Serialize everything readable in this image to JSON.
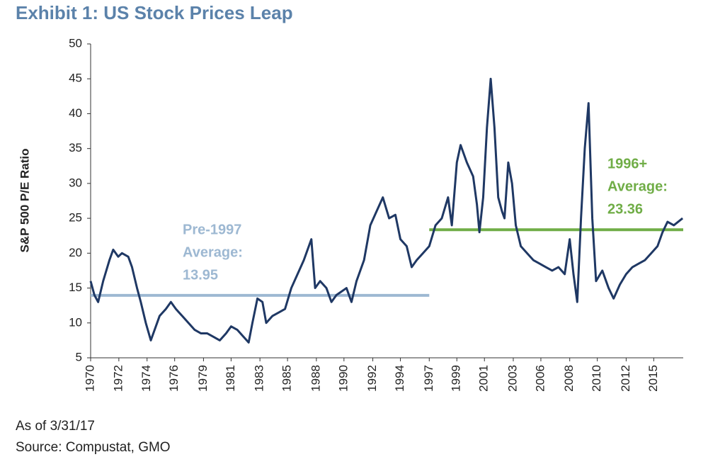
{
  "chart_data": {
    "type": "line",
    "title": "Exhibit 1: US Stock Prices Leap",
    "y_label": "S&P 500 P/E Ratio",
    "notes": [
      "As of 3/31/17",
      "Source: Compustat, GMO"
    ],
    "xlim": [
      1970,
      2017.25
    ],
    "ylim": [
      5,
      50
    ],
    "yticks": [
      5,
      10,
      15,
      20,
      25,
      30,
      35,
      40,
      45,
      50
    ],
    "xticks": [
      {
        "value": 1970,
        "label": "1970"
      },
      {
        "value": 1972.25,
        "label": "1972"
      },
      {
        "value": 1974.5,
        "label": "1974"
      },
      {
        "value": 1976.7,
        "label": "1976"
      },
      {
        "value": 1979,
        "label": "1979"
      },
      {
        "value": 1981.2,
        "label": "1981"
      },
      {
        "value": 1983.5,
        "label": "1983"
      },
      {
        "value": 1985.7,
        "label": "1985"
      },
      {
        "value": 1988,
        "label": "1988"
      },
      {
        "value": 1990.2,
        "label": "1990"
      },
      {
        "value": 1992.5,
        "label": "1992"
      },
      {
        "value": 1994.7,
        "label": "1994"
      },
      {
        "value": 1997,
        "label": "1997"
      },
      {
        "value": 1999.2,
        "label": "1999"
      },
      {
        "value": 2001.4,
        "label": "2001"
      },
      {
        "value": 2003.7,
        "label": "2003"
      },
      {
        "value": 2005.9,
        "label": "2006"
      },
      {
        "value": 2008.2,
        "label": "2008"
      },
      {
        "value": 2010.4,
        "label": "2010"
      },
      {
        "value": 2012.7,
        "label": "2012"
      },
      {
        "value": 2014.9,
        "label": "2015"
      }
    ],
    "x": [
      1970,
      1970.3,
      1970.6,
      1971,
      1971.5,
      1971.8,
      1972.2,
      1972.5,
      1973,
      1973.3,
      1973.7,
      1974,
      1974.4,
      1974.8,
      1975.1,
      1975.5,
      1976,
      1976.4,
      1976.8,
      1977.3,
      1977.8,
      1978.3,
      1978.8,
      1979.3,
      1979.8,
      1980.3,
      1980.8,
      1981.2,
      1981.7,
      1982.2,
      1982.6,
      1982.9,
      1983.3,
      1983.7,
      1984,
      1984.5,
      1985,
      1985.5,
      1986,
      1986.5,
      1987,
      1987.6,
      1987.9,
      1988.3,
      1988.8,
      1989.2,
      1989.6,
      1990,
      1990.4,
      1990.8,
      1991.2,
      1991.8,
      1992.3,
      1992.8,
      1993.3,
      1993.8,
      1994.3,
      1994.7,
      1995.2,
      1995.6,
      1996,
      1996.5,
      1997,
      1997.5,
      1998,
      1998.5,
      1998.8,
      1999.2,
      1999.5,
      2000,
      2000.5,
      2000.8,
      2001,
      2001.3,
      2001.6,
      2001.9,
      2002.2,
      2002.5,
      2002.8,
      2003,
      2003.3,
      2003.6,
      2003.9,
      2004.3,
      2004.8,
      2005.3,
      2005.8,
      2006.3,
      2006.8,
      2007.3,
      2007.8,
      2008.2,
      2008.5,
      2008.8,
      2009.1,
      2009.4,
      2009.7,
      2010,
      2010.3,
      2010.8,
      2011.3,
      2011.7,
      2012.2,
      2012.7,
      2013.2,
      2013.7,
      2014.2,
      2014.7,
      2015.2,
      2015.6,
      2016,
      2016.5,
      2017.2
    ],
    "series": [
      {
        "color": "#1f3864",
        "values": [
          16,
          14,
          13,
          16,
          19,
          20.5,
          19.5,
          20,
          19.5,
          18,
          15,
          13,
          10,
          7.5,
          9,
          11,
          12,
          13,
          12,
          11,
          10,
          9,
          8.5,
          8.5,
          8,
          7.5,
          8.5,
          9.5,
          9,
          8,
          7.2,
          10,
          13.5,
          13,
          10,
          11,
          11.5,
          12,
          15,
          17,
          19,
          22,
          15,
          16,
          15,
          13,
          14,
          14.5,
          15,
          13,
          16,
          19,
          24,
          26,
          28,
          25,
          25.5,
          22,
          21,
          18,
          19,
          20,
          21,
          24,
          25,
          28,
          24,
          33,
          35.5,
          33,
          31,
          27,
          23,
          28,
          38,
          45,
          38,
          28,
          26,
          25,
          33,
          30,
          24,
          21,
          20,
          19,
          18.5,
          18,
          17.5,
          18,
          17,
          22,
          17,
          13,
          25,
          35,
          41.5,
          25,
          16,
          17.5,
          15,
          13.5,
          15.5,
          17,
          18,
          18.5,
          19,
          20,
          21,
          23,
          24.5,
          24,
          25
        ]
      }
    ],
    "averages": [
      {
        "label": [
          "Pre-1997",
          "Average:"
        ],
        "value": 13.95,
        "x": [
          1970,
          1997
        ],
        "color": "#9db8d2"
      },
      {
        "label": [
          "1996+",
          "Average:"
        ],
        "value": 23.36,
        "x": [
          1997,
          2017.25
        ],
        "color": "#70ad47"
      }
    ]
  }
}
